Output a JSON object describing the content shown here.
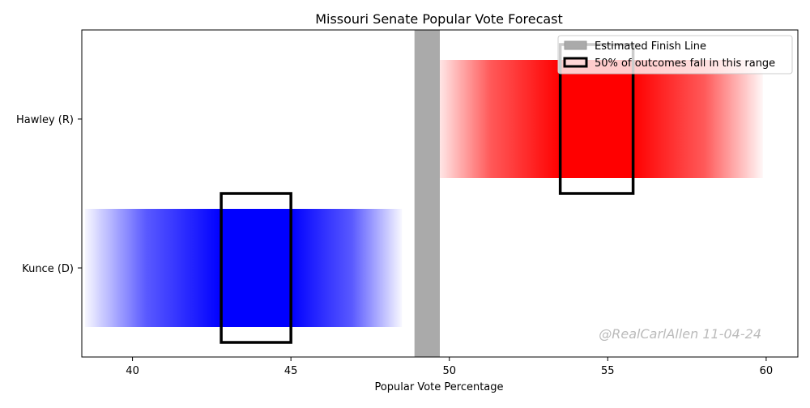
{
  "chart_data": {
    "type": "bar",
    "title": "Missouri Senate Popular Vote Forecast",
    "xlabel": "Popular Vote Percentage",
    "ylabel": "",
    "xlim": [
      38.4,
      61.0
    ],
    "xticks": [
      40,
      45,
      50,
      55,
      60
    ],
    "categories": [
      "Kunce (D)",
      "Hawley (R)"
    ],
    "series": [
      {
        "name": "Kunce (D)",
        "color": "#0000ff",
        "range_low": 38.5,
        "range_high": 48.5,
        "interquartile_low": 42.8,
        "interquartile_high": 45.0,
        "solid_low": 42.8,
        "solid_high": 45.0
      },
      {
        "name": "Hawley (R)",
        "color": "#ff0000",
        "range_low": 49.5,
        "range_high": 59.9,
        "interquartile_low": 53.5,
        "interquartile_high": 55.8,
        "solid_low": 53.5,
        "solid_high": 55.8
      }
    ],
    "finish_line": {
      "low": 48.9,
      "high": 49.7,
      "color": "#aaaaaa"
    },
    "legend": {
      "position": "top-right",
      "items": [
        "Estimated Finish Line",
        "50% of outcomes fall in this range"
      ]
    },
    "watermark": "@RealCarlAllen 11-04-24",
    "grid": false
  }
}
